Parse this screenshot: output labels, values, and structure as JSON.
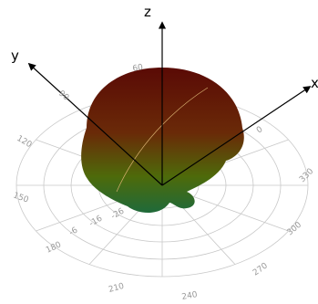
{
  "axes": {
    "x": "x",
    "y": "y",
    "z": "z"
  },
  "angle_labels": [
    "0",
    "60",
    "90",
    "120",
    "150",
    "180",
    "210",
    "240",
    "270",
    "300",
    "330"
  ],
  "radius_labels": [
    "-6",
    "-16",
    "-26"
  ]
}
